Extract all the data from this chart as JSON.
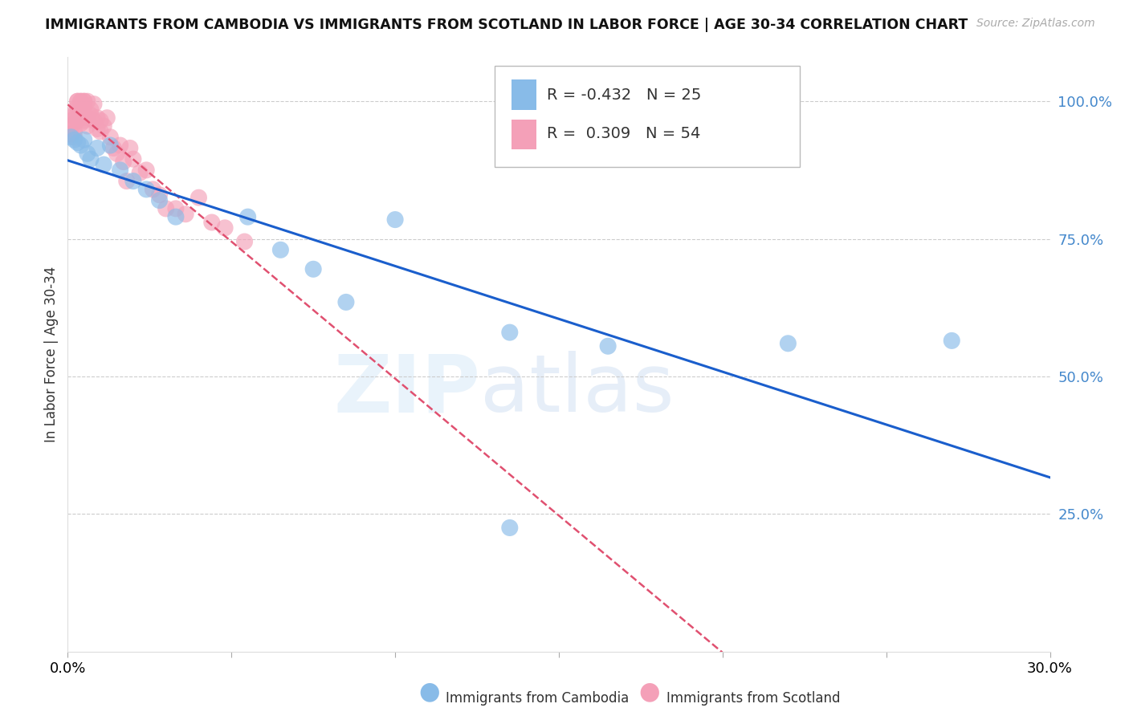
{
  "title": "IMMIGRANTS FROM CAMBODIA VS IMMIGRANTS FROM SCOTLAND IN LABOR FORCE | AGE 30-34 CORRELATION CHART",
  "source": "Source: ZipAtlas.com",
  "ylabel": "In Labor Force | Age 30-34",
  "xlim": [
    0.0,
    0.3
  ],
  "ylim": [
    0.0,
    1.08
  ],
  "yticks": [
    0.25,
    0.5,
    0.75,
    1.0
  ],
  "ytick_labels": [
    "25.0%",
    "50.0%",
    "75.0%",
    "100.0%"
  ],
  "R_cambodia": -0.432,
  "N_cambodia": 25,
  "R_scotland": 0.309,
  "N_scotland": 54,
  "color_cambodia": "#88BBE8",
  "color_scotland": "#F4A0B8",
  "trendline_cambodia_color": "#1A5ECC",
  "trendline_scotland_color": "#E05070",
  "watermark_zip": "ZIP",
  "watermark_atlas": "atlas",
  "cambodia_x": [
    0.001,
    0.002,
    0.003,
    0.004,
    0.005,
    0.006,
    0.007,
    0.009,
    0.011,
    0.013,
    0.016,
    0.02,
    0.024,
    0.028,
    0.033,
    0.055,
    0.065,
    0.075,
    0.085,
    0.1,
    0.135,
    0.165,
    0.22,
    0.27
  ],
  "cambodia_y": [
    0.935,
    0.93,
    0.925,
    0.92,
    0.93,
    0.905,
    0.895,
    0.915,
    0.885,
    0.92,
    0.875,
    0.855,
    0.84,
    0.82,
    0.79,
    0.79,
    0.73,
    0.695,
    0.635,
    0.785,
    0.58,
    0.555,
    0.56,
    0.565
  ],
  "cambodia_outlier_x": [
    0.135
  ],
  "cambodia_outlier_y": [
    0.225
  ],
  "scotland_x": [
    0.001,
    0.001,
    0.001,
    0.001,
    0.002,
    0.002,
    0.002,
    0.002,
    0.003,
    0.003,
    0.003,
    0.003,
    0.003,
    0.004,
    0.004,
    0.004,
    0.004,
    0.005,
    0.005,
    0.005,
    0.005,
    0.005,
    0.006,
    0.006,
    0.006,
    0.007,
    0.007,
    0.008,
    0.008,
    0.009,
    0.009,
    0.01,
    0.01,
    0.011,
    0.012,
    0.013,
    0.014,
    0.015,
    0.016,
    0.017,
    0.018,
    0.019,
    0.02,
    0.022,
    0.024,
    0.026,
    0.028,
    0.03,
    0.033,
    0.036,
    0.04,
    0.044,
    0.048,
    0.054
  ],
  "scotland_y": [
    0.94,
    0.955,
    0.965,
    0.975,
    0.935,
    0.945,
    0.96,
    0.975,
    0.98,
    1.0,
    0.965,
    0.99,
    1.0,
    0.96,
    0.98,
    1.0,
    1.0,
    1.0,
    0.99,
    0.975,
    0.965,
    1.0,
    0.97,
    0.955,
    1.0,
    0.975,
    0.985,
    0.965,
    0.995,
    0.97,
    0.95,
    0.945,
    0.965,
    0.955,
    0.97,
    0.935,
    0.915,
    0.905,
    0.92,
    0.89,
    0.855,
    0.915,
    0.895,
    0.87,
    0.875,
    0.84,
    0.83,
    0.805,
    0.805,
    0.795,
    0.825,
    0.78,
    0.77,
    0.745
  ]
}
